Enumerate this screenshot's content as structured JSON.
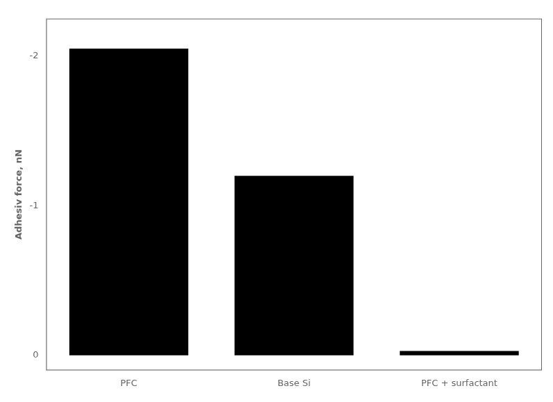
{
  "chart_data": {
    "type": "bar",
    "categories": [
      "PFC",
      "Base Si",
      "PFC + surfactant"
    ],
    "values": [
      -2.05,
      -1.2,
      -0.03
    ],
    "color": "#000000",
    "ylabel": "Adhesiv force, nN",
    "ylim": [
      0.1,
      -2.25
    ],
    "yticks": [
      0,
      -1,
      -2
    ],
    "grid": false
  }
}
